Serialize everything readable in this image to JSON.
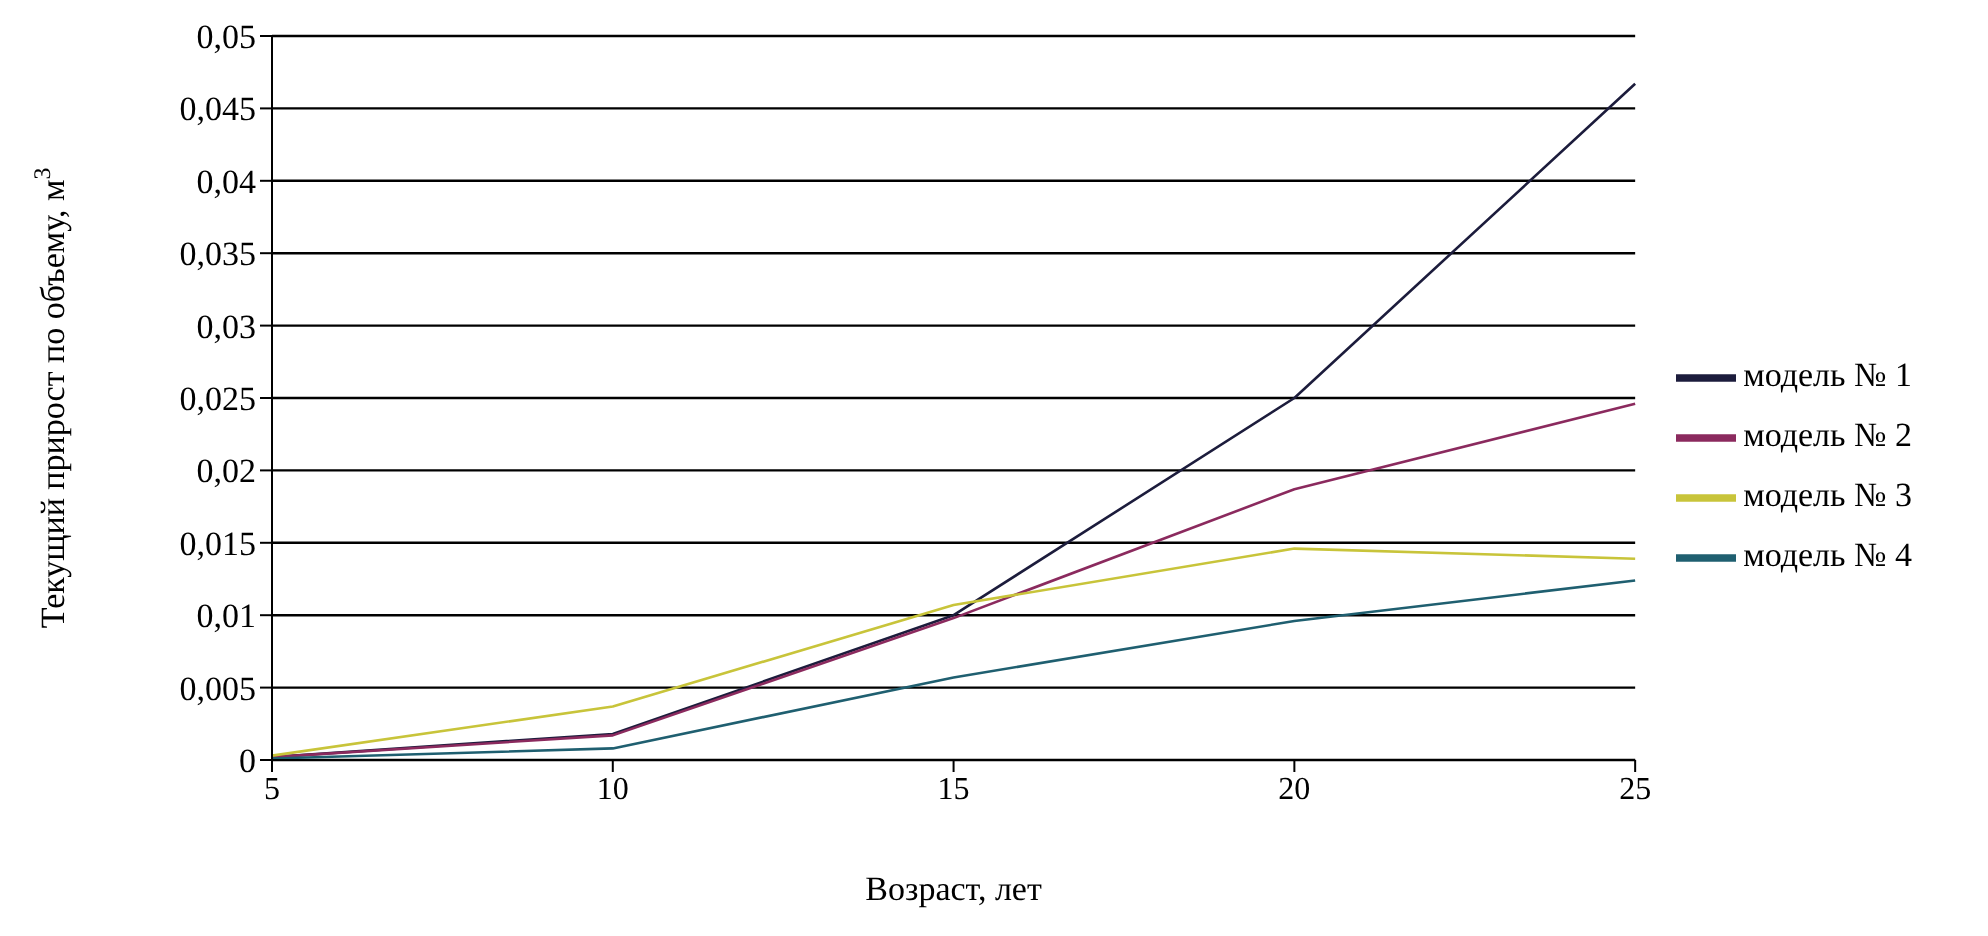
{
  "chart_data": {
    "type": "line",
    "xlabel": "Возраст, лет",
    "ylabel": "Текущий  прирост по объему, м$^{3}$",
    "categories": [
      "5",
      "10",
      "15",
      "20",
      "25"
    ],
    "series": [
      {
        "name": "модель № 1",
        "color": "#1c1c3c",
        "values": [
          0.0002,
          0.0018,
          0.01,
          0.025,
          0.0467
        ]
      },
      {
        "name": "модель № 2",
        "color": "#8b2a5e",
        "values": [
          0.0002,
          0.0017,
          0.0098,
          0.0187,
          0.0246
        ]
      },
      {
        "name": "модель № 3",
        "color": "#c8c43a",
        "values": [
          0.0003,
          0.0037,
          0.0107,
          0.0146,
          0.0139
        ]
      },
      {
        "name": "модель № 4",
        "color": "#1f5f70",
        "values": [
          0.0001,
          0.0008,
          0.0057,
          0.0096,
          0.0124
        ]
      }
    ],
    "ylim": [
      0,
      0.05
    ],
    "yticks": [
      0,
      {
        "value": 0.005,
        "label": "0,005"
      },
      {
        "value": 0.01,
        "label": "0,01"
      },
      {
        "value": 0.015,
        "label": "0,015"
      },
      {
        "value": 0.02,
        "label": "0,02"
      },
      {
        "value": 0.025,
        "label": "0,025"
      },
      {
        "value": 0.03,
        "label": "0,03"
      },
      {
        "value": 0.035,
        "label": "0,035"
      },
      {
        "value": 0.04,
        "label": "0,04"
      },
      {
        "value": 0.045,
        "label": "0,045"
      },
      {
        "value": 0.05,
        "label": "0,05"
      }
    ],
    "grid": "y",
    "legend": "right",
    "marker": "none",
    "line_style": "solid"
  }
}
